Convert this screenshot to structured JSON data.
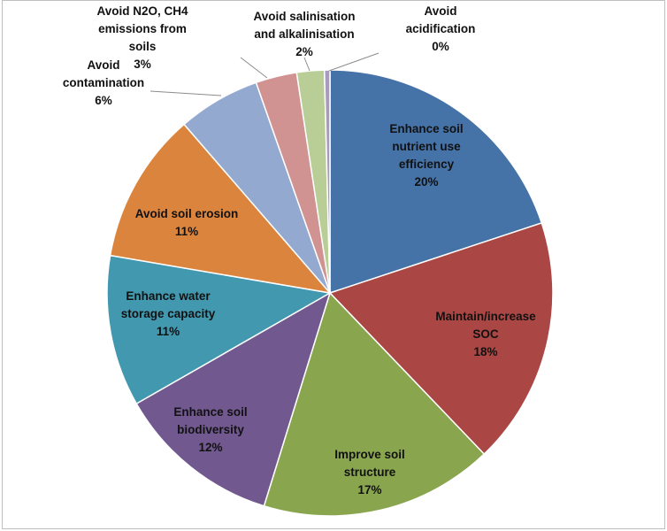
{
  "chart_data": {
    "type": "pie",
    "title": "",
    "start_angle_deg": 0,
    "direction": "clockwise",
    "slices": [
      {
        "label": "Enhance soil\nnutrient use\nefficiency",
        "pct_label": "20%",
        "value": 20,
        "color": "#4572a7"
      },
      {
        "label": "Maintain/increase\nSOC",
        "pct_label": "18%",
        "value": 18,
        "color": "#aa4643"
      },
      {
        "label": "Improve soil\nstructure",
        "pct_label": "17%",
        "value": 17,
        "color": "#89a54e"
      },
      {
        "label": "Enhance soil\nbiodiversity",
        "pct_label": "12%",
        "value": 12,
        "color": "#71588f"
      },
      {
        "label": "Enhance water\nstorage capacity",
        "pct_label": "11%",
        "value": 11,
        "color": "#4198af"
      },
      {
        "label": "Avoid soil erosion",
        "pct_label": "11%",
        "value": 11,
        "color": "#db843d"
      },
      {
        "label": "Avoid\ncontamination",
        "pct_label": "6%",
        "value": 6,
        "color": "#93a9cf"
      },
      {
        "label": "Avoid N2O, CH4\nemissions from\nsoils",
        "pct_label": "3%",
        "value": 3,
        "color": "#d19392"
      },
      {
        "label": "Avoid salinisation\nand alkalinisation",
        "pct_label": "2%",
        "value": 2,
        "color": "#b9cd96"
      },
      {
        "label": "Avoid\nacidification",
        "pct_label": "0%",
        "value": 0.4,
        "color": "#a99bbd"
      }
    ]
  }
}
